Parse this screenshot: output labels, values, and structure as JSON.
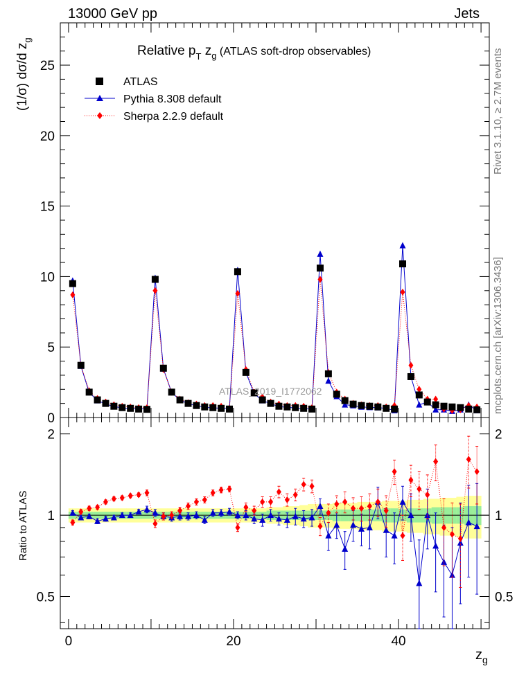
{
  "header": {
    "energy": "13000 GeV pp",
    "process": "Jets"
  },
  "side_labels": {
    "rivet": "Rivet 3.1.10, ≥ 2.7M events",
    "mcplots": "mcplots.cern.ch [arXiv:1306.3436]"
  },
  "watermark": "ATLAS_2019_I1772062",
  "chart_data": [
    {
      "type": "line",
      "panel": "main",
      "title": "Relative p_T z_g (ATLAS soft-drop observables)",
      "title_parts": {
        "main": "Relative p",
        "sub_t": "T",
        "z": " z",
        "sub_g": "g",
        "rest": " (ATLAS soft-drop observables)"
      },
      "ylabel": "(1/σ) dσ/d z_g",
      "ylabel_parts": {
        "main": "(1/σ) dσ/d z",
        "sub": "g"
      },
      "xlim": [
        -1,
        51
      ],
      "ylim": [
        0,
        28
      ],
      "yticks": [
        0,
        5,
        10,
        15,
        20,
        25
      ],
      "legend_position": "top-left",
      "x": [
        0.5,
        1.5,
        2.5,
        3.5,
        4.5,
        5.5,
        6.5,
        7.5,
        8.5,
        9.5,
        10.5,
        11.5,
        12.5,
        13.5,
        14.5,
        15.5,
        16.5,
        17.5,
        18.5,
        19.5,
        20.5,
        21.5,
        22.5,
        23.5,
        24.5,
        25.5,
        26.5,
        27.5,
        28.5,
        29.5,
        30.5,
        31.5,
        32.5,
        33.5,
        34.5,
        35.5,
        36.5,
        37.5,
        38.5,
        39.5,
        40.5,
        41.5,
        42.5,
        43.5,
        44.5,
        45.5,
        46.5,
        47.5,
        48.5,
        49.5
      ],
      "series": [
        {
          "name": "ATLAS",
          "marker": "square",
          "color": "#000000",
          "values": [
            9.5,
            3.7,
            1.8,
            1.25,
            1.0,
            0.8,
            0.7,
            0.65,
            0.6,
            0.58,
            9.8,
            3.5,
            1.8,
            1.25,
            1.0,
            0.85,
            0.75,
            0.7,
            0.65,
            0.6,
            10.35,
            3.2,
            1.75,
            1.25,
            1.0,
            0.8,
            0.75,
            0.7,
            0.65,
            0.6,
            10.6,
            3.1,
            1.65,
            1.2,
            0.95,
            0.85,
            0.8,
            0.75,
            0.65,
            0.6,
            10.9,
            2.9,
            1.6,
            1.1,
            0.9,
            0.8,
            0.75,
            0.7,
            0.6,
            0.55
          ]
        },
        {
          "name": "Pythia 8.308 default",
          "marker": "triangle",
          "color": "#0000cc",
          "values": [
            9.7,
            3.65,
            1.78,
            1.2,
            0.96,
            0.78,
            0.68,
            0.64,
            0.62,
            0.6,
            9.9,
            3.45,
            1.77,
            1.25,
            0.97,
            0.85,
            0.72,
            0.69,
            0.66,
            0.6,
            10.45,
            3.2,
            1.7,
            1.2,
            0.98,
            0.78,
            0.72,
            0.68,
            0.63,
            0.59,
            11.6,
            2.6,
            1.5,
            0.9,
            0.85,
            0.75,
            0.72,
            0.7,
            0.65,
            0.5,
            12.2,
            2.9,
            0.9,
            1.1,
            0.55,
            0.55,
            0.45,
            0.55,
            0.9,
            0.5
          ]
        },
        {
          "name": "Sherpa 2.2.9 default",
          "marker": "diamond",
          "color": "#ff0000",
          "values": [
            8.7,
            3.7,
            1.9,
            1.35,
            1.1,
            0.9,
            0.8,
            0.75,
            0.7,
            0.7,
            9.0,
            3.4,
            1.8,
            1.3,
            1.05,
            0.95,
            0.85,
            0.85,
            0.8,
            0.65,
            8.8,
            3.4,
            1.8,
            1.45,
            1.1,
            0.95,
            0.85,
            0.85,
            0.8,
            0.7,
            9.8,
            3.2,
            1.8,
            1.3,
            1.0,
            0.9,
            0.85,
            0.85,
            0.75,
            0.85,
            8.9,
            3.7,
            2.0,
            1.3,
            1.3,
            0.6,
            0.5,
            0.55,
            0.85,
            0.75
          ]
        }
      ]
    },
    {
      "type": "line",
      "panel": "ratio",
      "ylabel": "Ratio to ATLAS",
      "xlabel": "z_g",
      "xlabel_parts": {
        "main": "z",
        "sub": "g"
      },
      "xlim": [
        -1,
        51
      ],
      "ylim": [
        0.38,
        2.3
      ],
      "yticks": [
        0.5,
        1,
        2
      ],
      "xticks": [
        0,
        20,
        40
      ],
      "x": [
        0.5,
        1.5,
        2.5,
        3.5,
        4.5,
        5.5,
        6.5,
        7.5,
        8.5,
        9.5,
        10.5,
        11.5,
        12.5,
        13.5,
        14.5,
        15.5,
        16.5,
        17.5,
        18.5,
        19.5,
        20.5,
        21.5,
        22.5,
        23.5,
        24.5,
        25.5,
        26.5,
        27.5,
        28.5,
        29.5,
        30.5,
        31.5,
        32.5,
        33.5,
        34.5,
        35.5,
        36.5,
        37.5,
        38.5,
        39.5,
        40.5,
        41.5,
        42.5,
        43.5,
        44.5,
        45.5,
        46.5,
        47.5,
        48.5,
        49.5
      ],
      "band_halfwidths": {
        "stat_green": [
          0.03,
          0.03,
          0.03,
          0.03,
          0.03,
          0.03,
          0.03,
          0.03,
          0.03,
          0.03,
          0.03,
          0.03,
          0.03,
          0.03,
          0.03,
          0.03,
          0.03,
          0.03,
          0.03,
          0.03,
          0.03,
          0.03,
          0.03,
          0.03,
          0.04,
          0.04,
          0.04,
          0.04,
          0.04,
          0.04,
          0.04,
          0.04,
          0.05,
          0.05,
          0.05,
          0.05,
          0.05,
          0.05,
          0.06,
          0.06,
          0.05,
          0.06,
          0.06,
          0.06,
          0.07,
          0.07,
          0.07,
          0.07,
          0.08,
          0.08
        ],
        "total_yellow": [
          0.06,
          0.06,
          0.06,
          0.06,
          0.06,
          0.06,
          0.06,
          0.06,
          0.06,
          0.06,
          0.06,
          0.06,
          0.06,
          0.06,
          0.06,
          0.06,
          0.06,
          0.06,
          0.06,
          0.06,
          0.06,
          0.06,
          0.06,
          0.06,
          0.07,
          0.07,
          0.08,
          0.08,
          0.09,
          0.1,
          0.1,
          0.1,
          0.11,
          0.11,
          0.11,
          0.12,
          0.12,
          0.12,
          0.13,
          0.13,
          0.13,
          0.14,
          0.14,
          0.15,
          0.15,
          0.16,
          0.16,
          0.17,
          0.18,
          0.18
        ]
      },
      "series": [
        {
          "name": "Pythia 8.308 default",
          "color": "#0000cc",
          "values": [
            1.02,
            0.98,
            0.99,
            0.95,
            0.97,
            0.98,
            1.0,
            1.0,
            1.03,
            1.05,
            1.02,
            0.99,
            0.98,
            0.99,
            0.99,
            1.0,
            0.96,
            1.02,
            1.02,
            1.03,
            1.0,
            1.0,
            0.97,
            0.96,
            1.0,
            0.97,
            0.96,
            0.99,
            0.97,
            0.98,
            1.08,
            0.84,
            0.92,
            0.75,
            0.92,
            0.89,
            0.9,
            1.12,
            0.88,
            0.84,
            1.12,
            1.0,
            0.56,
            1.0,
            0.77,
            0.67,
            0.6,
            0.79,
            0.94,
            0.91
          ],
          "errors": [
            0.02,
            0.02,
            0.02,
            0.02,
            0.02,
            0.02,
            0.02,
            0.02,
            0.02,
            0.03,
            0.03,
            0.03,
            0.03,
            0.03,
            0.03,
            0.03,
            0.03,
            0.03,
            0.03,
            0.03,
            0.03,
            0.04,
            0.04,
            0.05,
            0.05,
            0.05,
            0.06,
            0.07,
            0.07,
            0.07,
            0.07,
            0.1,
            0.1,
            0.12,
            0.12,
            0.12,
            0.15,
            0.15,
            0.18,
            0.18,
            0.16,
            0.2,
            0.25,
            0.25,
            0.25,
            0.25,
            0.3,
            0.32,
            0.35,
            0.4
          ]
        },
        {
          "name": "Sherpa 2.2.9 default",
          "color": "#ff0000",
          "values": [
            0.94,
            1.03,
            1.06,
            1.07,
            1.12,
            1.15,
            1.16,
            1.18,
            1.19,
            1.21,
            0.93,
            0.99,
            1.0,
            1.04,
            1.08,
            1.12,
            1.14,
            1.21,
            1.24,
            1.25,
            0.9,
            1.07,
            1.04,
            1.12,
            1.12,
            1.22,
            1.14,
            1.19,
            1.3,
            1.28,
            0.91,
            1.02,
            1.1,
            1.12,
            1.06,
            1.06,
            1.08,
            1.12,
            1.04,
            1.45,
            0.84,
            1.35,
            1.25,
            1.19,
            1.58,
            0.9,
            0.85,
            0.82,
            1.61,
            1.45
          ],
          "errors": [
            0.02,
            0.02,
            0.02,
            0.02,
            0.02,
            0.02,
            0.02,
            0.02,
            0.02,
            0.03,
            0.03,
            0.03,
            0.03,
            0.03,
            0.03,
            0.03,
            0.03,
            0.03,
            0.03,
            0.03,
            0.03,
            0.04,
            0.04,
            0.05,
            0.05,
            0.06,
            0.06,
            0.06,
            0.07,
            0.07,
            0.07,
            0.08,
            0.08,
            0.1,
            0.1,
            0.11,
            0.12,
            0.13,
            0.14,
            0.15,
            0.16,
            0.18,
            0.2,
            0.22,
            0.24,
            0.25,
            0.26,
            0.28,
            0.35,
            0.35
          ]
        }
      ]
    }
  ]
}
